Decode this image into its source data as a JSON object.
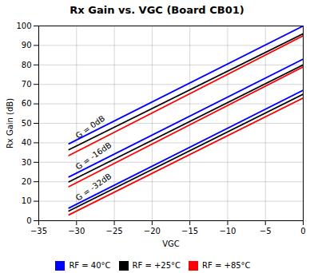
{
  "chart_data": {
    "type": "line",
    "title": "Rx Gain vs. VGC (Board CB01)",
    "xlabel": "VGC",
    "ylabel": "Rx Gain (dB)",
    "x": [
      -31,
      0
    ],
    "series": [
      {
        "name": "RF = 40°C",
        "color": "#0000FF",
        "values": [
          39.5,
          100
        ]
      },
      {
        "name": "RF = +25°C",
        "color": "#000000",
        "values": [
          36.5,
          96
        ]
      },
      {
        "name": "RF = +85°C",
        "color": "#FF0000",
        "values": [
          33.5,
          95
        ]
      },
      {
        "name": "RF = 40°C",
        "color": "#0000FF",
        "values": [
          22.5,
          83
        ]
      },
      {
        "name": "RF = +25°C",
        "color": "#000000",
        "values": [
          20.0,
          80
        ]
      },
      {
        "name": "RF = +85°C",
        "color": "#FF0000",
        "values": [
          17.5,
          79
        ]
      },
      {
        "name": "RF = 40°C",
        "color": "#0000FF",
        "values": [
          6.5,
          67
        ]
      },
      {
        "name": "RF = +25°C",
        "color": "#000000",
        "values": [
          5.0,
          65
        ]
      },
      {
        "name": "RF = +85°C",
        "color": "#FF0000",
        "values": [
          3.0,
          63
        ]
      }
    ],
    "annotations": [
      {
        "text": "G = 0dB",
        "x": -29.8,
        "y": 42
      },
      {
        "text": "G = -16dB",
        "x": -29.8,
        "y": 26
      },
      {
        "text": "G = -32dB",
        "x": -29.8,
        "y": 10
      }
    ],
    "xlim": [
      -35,
      0
    ],
    "ylim": [
      0,
      100
    ],
    "xticks": [
      -35,
      -30,
      -25,
      -20,
      -15,
      -10,
      -5,
      0
    ],
    "yticks": [
      0,
      10,
      20,
      30,
      40,
      50,
      60,
      70,
      80,
      90,
      100
    ],
    "grid": true,
    "legend": "bottom"
  }
}
